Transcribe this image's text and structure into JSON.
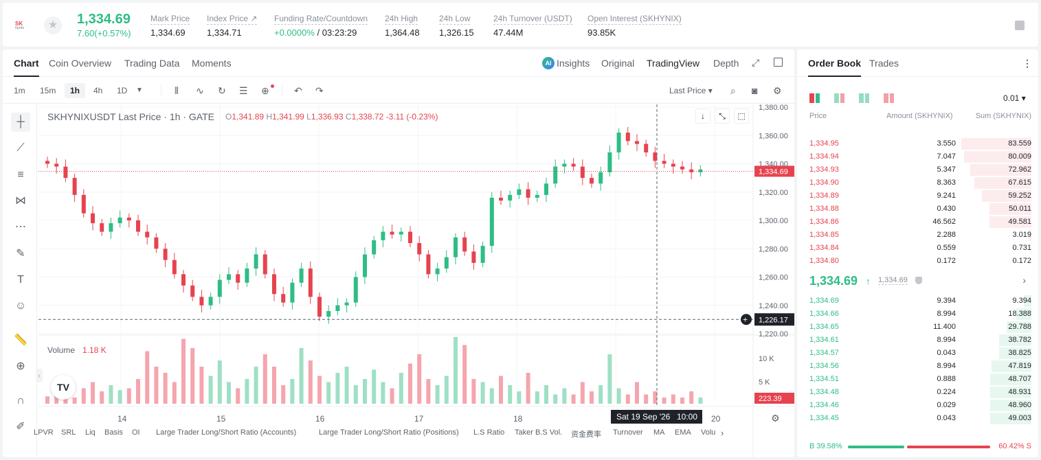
{
  "header": {
    "logo_text": "SK",
    "logo_sub": "hynix",
    "last_price": "1,334.69",
    "change": "7.60(+0.57%)",
    "stats": [
      {
        "label": "Mark Price",
        "value": "1,334.69"
      },
      {
        "label": "Index Price ↗",
        "value": "1,334.71"
      },
      {
        "label": "Funding Rate/Countdown",
        "value_up": "+0.0000%",
        "value_rest": " / 03:23:29"
      },
      {
        "label": "24h High",
        "value": "1,364.48"
      },
      {
        "label": "24h Low",
        "value": "1,326.15"
      },
      {
        "label": "24h Turnover (USDT)",
        "value": "47.44M"
      },
      {
        "label": "Open Interest (SKHYNIX)",
        "value": "93.85K"
      }
    ]
  },
  "chart_tabs": [
    "Chart",
    "Coin Overview",
    "Trading Data",
    "Moments"
  ],
  "view_tabs": {
    "ai": "AI",
    "insights": "Insights",
    "original": "Original",
    "tradingview": "TradingView",
    "depth": "Depth"
  },
  "timeframes": [
    "1m",
    "15m",
    "1h",
    "4h",
    "1D"
  ],
  "last_price_select": "Last Price",
  "legend": {
    "title": "SKHYNIXUSDT Last Price · 1h · GATE",
    "o": "1,341.89",
    "h": "1,341.99",
    "l": "1,336.93",
    "c": "1,338.72",
    "chg": "-3.11 (-0.23%)"
  },
  "volume": {
    "label": "Volume",
    "value": "1.18 K",
    "last_label": "223.39"
  },
  "price_labels": {
    "current": "1,334.69",
    "crosshair": "1,226.17"
  },
  "time_label": {
    "date": "Sat 19 Sep '26",
    "time": "10:00"
  },
  "indicators": [
    "LPVR",
    "SRL",
    "Liq",
    "Basis",
    "OI",
    "Large Trader Long/Short Ratio (Accounts)",
    "Large Trader Long/Short Ratio (Positions)",
    "L.S Ratio",
    "Taker B.S Vol.",
    "资金费率",
    "Turnover",
    "MA",
    "EMA",
    "Volu"
  ],
  "chart_data": {
    "type": "candlestick",
    "symbol": "SKHYNIXUSDT",
    "interval": "1h",
    "y_ticks": [
      "1,380.00",
      "1,360.00",
      "1,340.00",
      "1,320.00",
      "1,300.00",
      "1,280.00",
      "1,260.00",
      "1,240.00",
      "1,220.00"
    ],
    "ylim": [
      1220,
      1380
    ],
    "x_ticks": [
      "14",
      "15",
      "16",
      "17",
      "18",
      "20"
    ],
    "vol_ticks": [
      "10 K",
      "5 K"
    ],
    "current_price": 1334.69,
    "crosshair_price": 1226.17,
    "close_path": [
      1340,
      1338,
      1330,
      1318,
      1305,
      1298,
      1292,
      1298,
      1302,
      1300,
      1292,
      1288,
      1280,
      1272,
      1262,
      1254,
      1246,
      1240,
      1246,
      1258,
      1262,
      1256,
      1266,
      1276,
      1262,
      1248,
      1242,
      1256,
      1266,
      1246,
      1232,
      1236,
      1240,
      1242,
      1260,
      1276,
      1286,
      1292,
      1290,
      1292,
      1284,
      1276,
      1262,
      1266,
      1274,
      1288,
      1278,
      1270,
      1282,
      1316,
      1314,
      1318,
      1322,
      1316,
      1318,
      1326,
      1338,
      1340,
      1338,
      1330,
      1326,
      1334,
      1348,
      1362,
      1356,
      1354,
      1348,
      1342,
      1340,
      1338,
      1336,
      1334,
      1336
    ],
    "volume_k": [
      1.2,
      2.0,
      1.5,
      1.0,
      2.5,
      3.5,
      2.0,
      3.0,
      2.2,
      2.5,
      4.0,
      8.5,
      6.0,
      5.0,
      3.5,
      10.5,
      9.0,
      6.0,
      4.5,
      7.0,
      3.5,
      2.5,
      4.0,
      6.0,
      8.0,
      6.0,
      3.0,
      4.0,
      9.0,
      7.0,
      4.5,
      3.5,
      5.0,
      6.0,
      3.0,
      4.0,
      5.5,
      3.5,
      2.5,
      5.0,
      6.5,
      8.0,
      4.0,
      3.0,
      4.5,
      10.8,
      9.5,
      4.0,
      3.5,
      2.5,
      4.5,
      3.0,
      2.0,
      5.0,
      2.0,
      3.0,
      1.5,
      2.5,
      1.5,
      3.5,
      2.0,
      3.0,
      8.0,
      2.5,
      1.5,
      3.5,
      1.5,
      2.0,
      1.0,
      1.5,
      1.0,
      2.0,
      1.0
    ]
  },
  "order_book": {
    "tabs": [
      "Order Book",
      "Trades"
    ],
    "precision": "0.01",
    "headers": [
      "Price",
      "Amount (SKHYNIX)",
      "Sum (SKHYNIX)"
    ],
    "asks": [
      {
        "price": "1,334.95",
        "amount": "3.550",
        "sum": "83.559"
      },
      {
        "price": "1,334.94",
        "amount": "7.047",
        "sum": "80.009"
      },
      {
        "price": "1,334.93",
        "amount": "5.347",
        "sum": "72.962"
      },
      {
        "price": "1,334.90",
        "amount": "8.363",
        "sum": "67.615"
      },
      {
        "price": "1,334.89",
        "amount": "9.241",
        "sum": "59.252"
      },
      {
        "price": "1,334.88",
        "amount": "0.430",
        "sum": "50.011"
      },
      {
        "price": "1,334.86",
        "amount": "46.562",
        "sum": "49.581"
      },
      {
        "price": "1,334.85",
        "amount": "2.288",
        "sum": "3.019"
      },
      {
        "price": "1,334.84",
        "amount": "0.559",
        "sum": "0.731"
      },
      {
        "price": "1,334.80",
        "amount": "0.172",
        "sum": "0.172"
      }
    ],
    "mid": {
      "price": "1,334.69",
      "arrow": "↑",
      "mark": "1,334.69"
    },
    "bids": [
      {
        "price": "1,334.69",
        "amount": "9.394",
        "sum": "9.394"
      },
      {
        "price": "1,334.66",
        "amount": "8.994",
        "sum": "18.388"
      },
      {
        "price": "1,334.65",
        "amount": "11.400",
        "sum": "29.788"
      },
      {
        "price": "1,334.61",
        "amount": "8.994",
        "sum": "38.782"
      },
      {
        "price": "1,334.57",
        "amount": "0.043",
        "sum": "38.825"
      },
      {
        "price": "1,334.56",
        "amount": "8.994",
        "sum": "47.819"
      },
      {
        "price": "1,334.51",
        "amount": "0.888",
        "sum": "48.707"
      },
      {
        "price": "1,334.48",
        "amount": "0.224",
        "sum": "48.931"
      },
      {
        "price": "1,334.46",
        "amount": "0.029",
        "sum": "48.960"
      },
      {
        "price": "1,334.45",
        "amount": "0.043",
        "sum": "49.003"
      }
    ],
    "ratio": {
      "buy_label": "B 39.58%",
      "sell_label": "60.42% S",
      "buy_pct": 39.58
    },
    "colors": {
      "up": "#2ebd85",
      "down": "#e6434f"
    }
  }
}
